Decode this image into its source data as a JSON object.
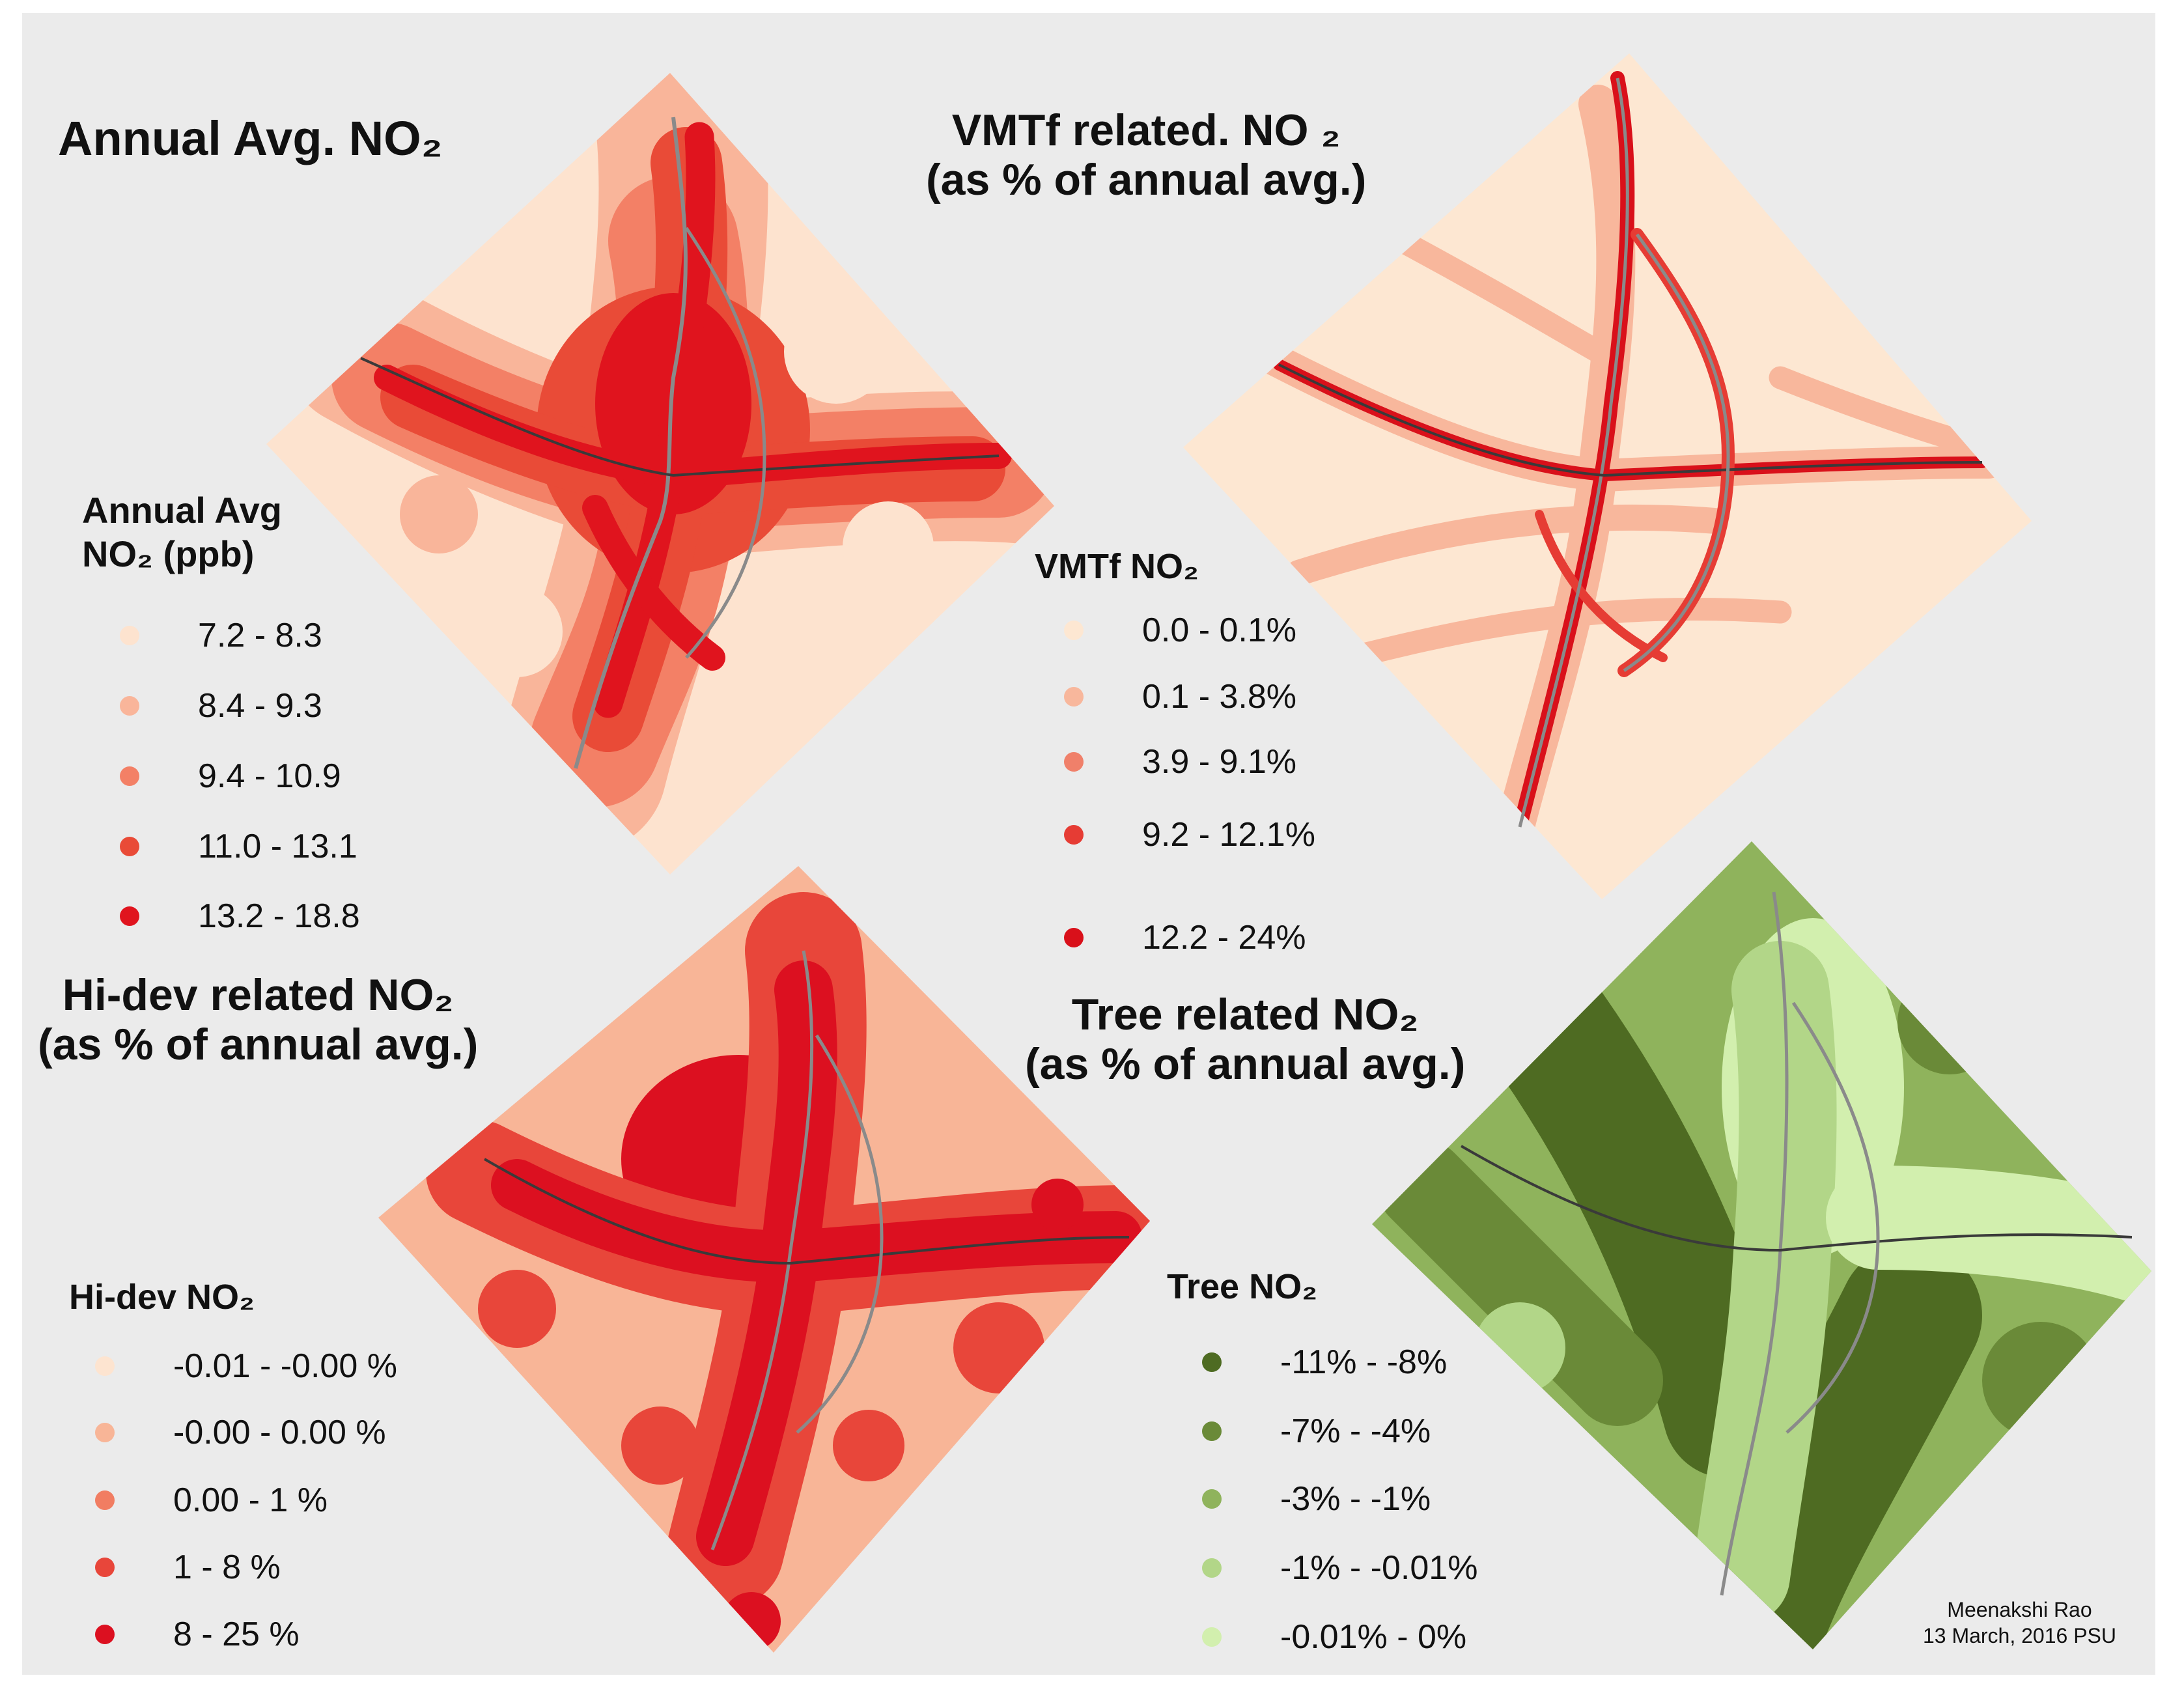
{
  "panels": {
    "annual": {
      "title": "Annual Avg. NO₂",
      "legend_title_line1": "Annual Avg",
      "legend_title_line2": "NO₂ (ppb)",
      "legend": [
        {
          "label": "7.2 - 8.3",
          "color": "#fde3cf"
        },
        {
          "label": "8.4 - 9.3",
          "color": "#f9b59a"
        },
        {
          "label": "9.4 - 10.9",
          "color": "#f38066"
        },
        {
          "label": "11.0 - 13.1",
          "color": "#e94b37"
        },
        {
          "label": "13.2 - 18.8",
          "color": "#e0141e"
        }
      ]
    },
    "vmtf": {
      "title_line1": "VMTf related. NO ₂",
      "title_line2": "(as % of annual avg.)",
      "legend_title": "VMTf NO₂",
      "legend": [
        {
          "label": "0.0 - 0.1%",
          "color": "#fde7d2"
        },
        {
          "label": "0.1 - 3.8%",
          "color": "#f8b79c"
        },
        {
          "label": "3.9 - 9.1%",
          "color": "#f0806a"
        },
        {
          "label": "9.2 - 12.1%",
          "color": "#e63c34"
        },
        {
          "label": "12.2 - 24%",
          "color": "#d9101a"
        }
      ]
    },
    "hidev": {
      "title_line1": "Hi-dev related NO₂",
      "title_line2": "(as  % of annual avg.)",
      "legend_title": "Hi-dev NO₂",
      "legend": [
        {
          "label": "-0.01 - -0.00 %",
          "color": "#fde4d0"
        },
        {
          "label": "-0.00 - 0.00 %",
          "color": "#f8b597"
        },
        {
          "label": "0.00 - 1 %",
          "color": "#f17d62"
        },
        {
          "label": "1 - 8 %",
          "color": "#e8463a"
        },
        {
          "label": "8 - 25 %",
          "color": "#dc1020"
        }
      ]
    },
    "tree": {
      "title_line1": "Tree related NO₂",
      "title_line2": "(as % of annual avg.)",
      "legend_title": "Tree NO₂",
      "legend": [
        {
          "label": "-11% - -8%",
          "color": "#4e6b22"
        },
        {
          "label": "-7% - -4%",
          "color": "#6a8a38"
        },
        {
          "label": "-3% - -1%",
          "color": "#8fb35c"
        },
        {
          "label": "-1% - -0.01%",
          "color": "#b2d688"
        },
        {
          "label": "-0.01% - 0%",
          "color": "#d2efae"
        }
      ]
    }
  },
  "credit": {
    "line1": "Meenakshi Rao",
    "line2": "13 March, 2016 PSU"
  }
}
